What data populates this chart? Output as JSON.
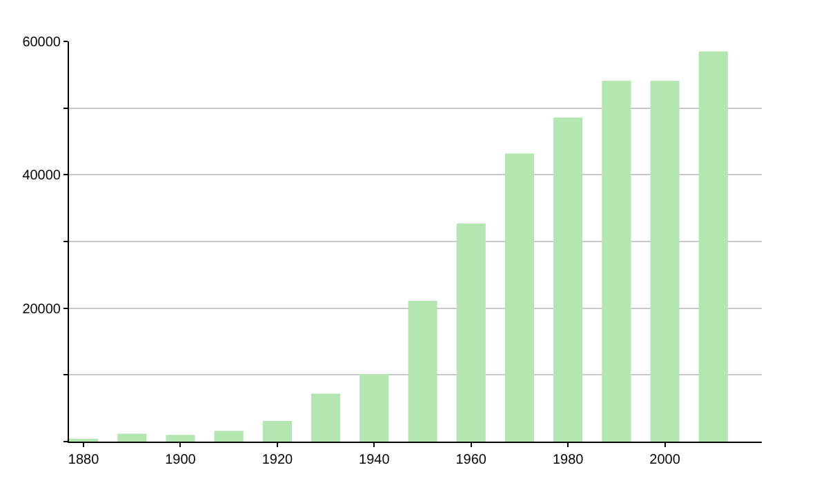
{
  "chart_data": {
    "type": "bar",
    "x": [
      1880,
      1890,
      1900,
      1910,
      1920,
      1930,
      1940,
      1950,
      1960,
      1970,
      1980,
      1990,
      2000,
      2010
    ],
    "values": [
      300,
      1200,
      1000,
      1600,
      3100,
      7200,
      10100,
      21100,
      32700,
      43200,
      48600,
      54100,
      54100,
      58500
    ],
    "color": "#b3e6b0",
    "xlim": [
      1877,
      2020
    ],
    "xticks": [
      1880,
      1900,
      1920,
      1940,
      1960,
      1980,
      2000
    ],
    "ylim": [
      0,
      60000
    ],
    "yticks": [
      {
        "value": 0,
        "label": null
      },
      {
        "value": 10000,
        "label": null
      },
      20000,
      {
        "value": 30000,
        "label": null
      },
      40000,
      {
        "value": 50000,
        "label": null
      },
      60000
    ],
    "grid": "y"
  }
}
